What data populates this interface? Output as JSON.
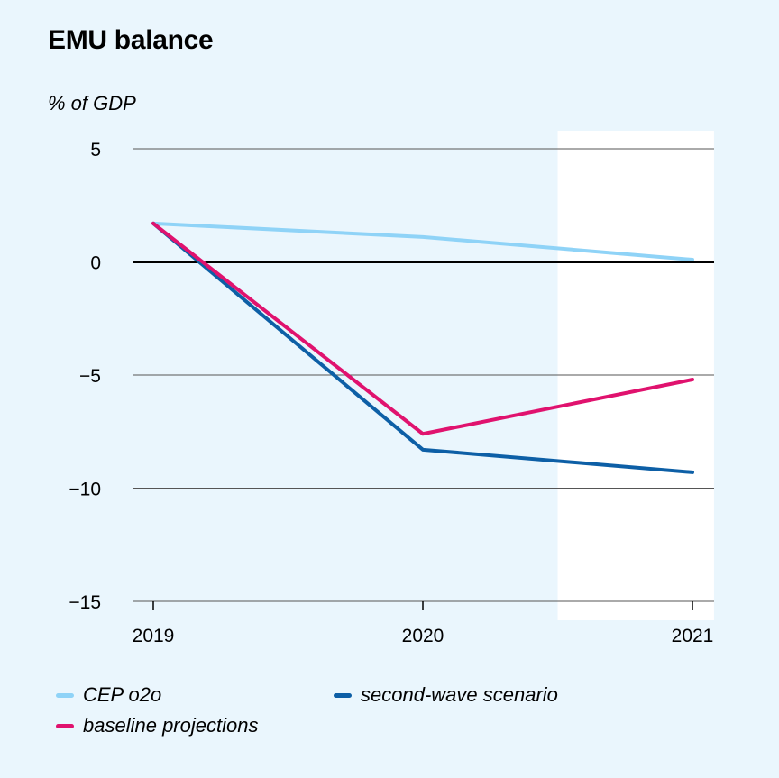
{
  "chart_data": {
    "type": "line",
    "title": "EMU balance",
    "ylabel": "% of GDP",
    "xlabel": "",
    "x": [
      "2019",
      "2020",
      "2021"
    ],
    "ylim": [
      -15,
      5
    ],
    "yticks": [
      5,
      0,
      -5,
      -10,
      -15
    ],
    "yticklabels": [
      "5",
      "0",
      "−5",
      "−10",
      "−15"
    ],
    "grid": true,
    "shaded_region": {
      "from": 2020.5,
      "to": 2021.08
    },
    "legend_position": "bottom",
    "series": [
      {
        "name": "CEP o2o",
        "color": "#8fd3f7",
        "values": [
          1.7,
          1.1,
          0.1
        ]
      },
      {
        "name": "second-wave scenario",
        "color": "#0d5fa6",
        "values": [
          1.7,
          -8.3,
          -9.3
        ]
      },
      {
        "name": "baseline projections",
        "color": "#e0126e",
        "values": [
          1.7,
          -7.6,
          -5.2
        ]
      }
    ]
  },
  "colors": {
    "background": "#eaf6fd",
    "projection_band": "#ffffff",
    "grid": "#555555",
    "zero_line": "#000000"
  }
}
